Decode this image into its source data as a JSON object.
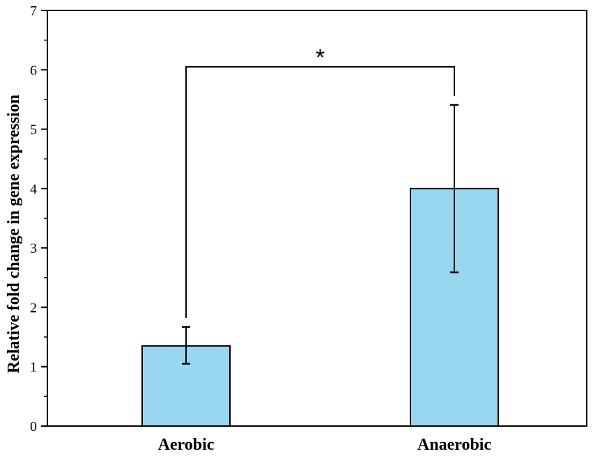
{
  "chart_data": {
    "type": "bar",
    "categories": [
      "Aerobic",
      "Anaerobic"
    ],
    "values": [
      1.35,
      4.0
    ],
    "error_high": [
      1.67,
      5.41
    ],
    "error_low": [
      1.05,
      2.59
    ],
    "xlabel": "",
    "ylabel": "Relative fold change in gene expression",
    "ylim": [
      0,
      7
    ],
    "yticks": [
      "0",
      "1",
      "2",
      "3",
      "4",
      "5",
      "6",
      "7"
    ],
    "grid": false,
    "bar_color": "#99d6f0",
    "significance": {
      "label": "*",
      "between": [
        "Aerobic",
        "Anaerobic"
      ],
      "y": 6.05
    }
  }
}
